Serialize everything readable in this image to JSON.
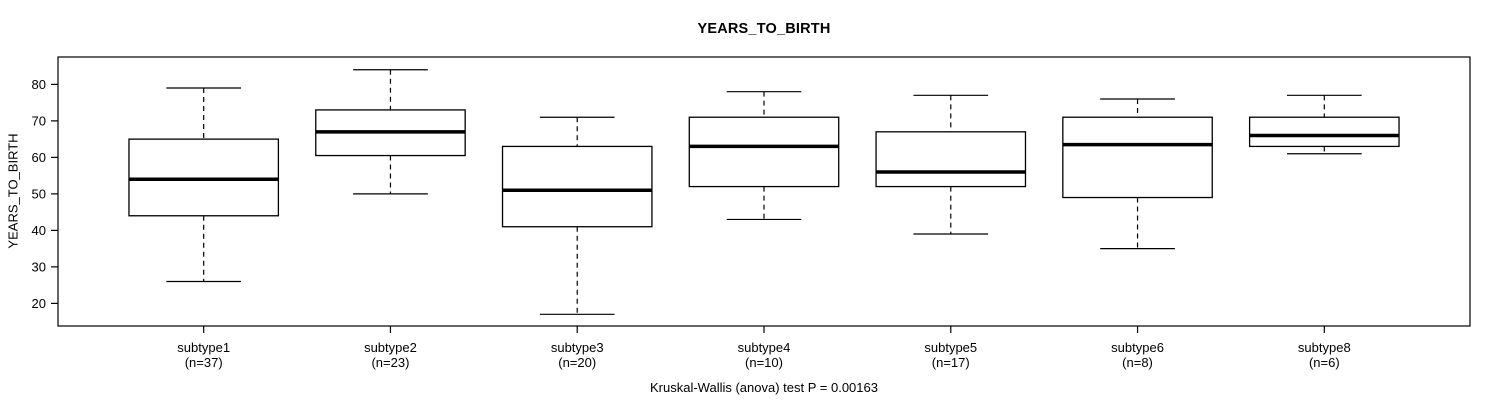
{
  "title": "YEARS_TO_BIRTH",
  "ylabel": "YEARS_TO_BIRTH",
  "footer": "Kruskal-Wallis (anova) test P = 0.00163",
  "chart_data": {
    "type": "boxplot",
    "title": "YEARS_TO_BIRTH",
    "ylabel": "YEARS_TO_BIRTH",
    "annotation": "Kruskal-Wallis (anova) test P = 0.00163",
    "p_value": 0.00163,
    "yticks": [
      20,
      30,
      40,
      50,
      60,
      70,
      80
    ],
    "ylim": [
      13.8,
      87.5
    ],
    "grid": false,
    "legend": "none",
    "groups": [
      {
        "label": "subtype1",
        "sublabel": "(n=37)",
        "n": 37,
        "low": 26,
        "q1": 44,
        "median": 54,
        "q3": 65,
        "high": 79
      },
      {
        "label": "subtype2",
        "sublabel": "(n=23)",
        "n": 23,
        "low": 50,
        "q1": 60.5,
        "median": 67,
        "q3": 73,
        "high": 84
      },
      {
        "label": "subtype3",
        "sublabel": "(n=20)",
        "n": 20,
        "low": 17,
        "q1": 41,
        "median": 51,
        "q3": 63,
        "high": 71
      },
      {
        "label": "subtype4",
        "sublabel": "(n=10)",
        "n": 10,
        "low": 43,
        "q1": 52,
        "median": 63,
        "q3": 71,
        "high": 78
      },
      {
        "label": "subtype5",
        "sublabel": "(n=17)",
        "n": 17,
        "low": 39,
        "q1": 52,
        "median": 56,
        "q3": 67,
        "high": 77
      },
      {
        "label": "subtype6",
        "sublabel": "(n=8)",
        "n": 8,
        "low": 35,
        "q1": 49,
        "median": 63.5,
        "q3": 71,
        "high": 76
      },
      {
        "label": "subtype8",
        "sublabel": "(n=6)",
        "n": 6,
        "low": 61,
        "q1": 63,
        "median": 66,
        "q3": 71,
        "high": 77
      }
    ],
    "colors": {
      "line": "#000000",
      "box_fill": "#ffffff",
      "background": "#ffffff"
    }
  }
}
